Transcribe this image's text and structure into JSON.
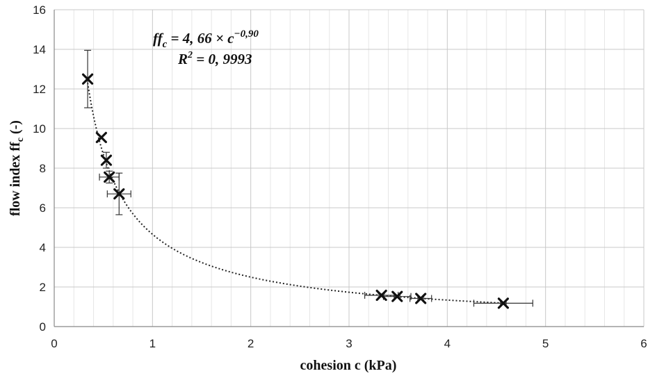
{
  "chart_data": {
    "type": "scatter",
    "xlabel": "cohesion c (kPa)",
    "ylabel": "flow index ff",
    "ylabel_subscript": "c",
    "ylabel_suffix": " (-)",
    "xlim": [
      0,
      6
    ],
    "ylim": [
      0,
      16
    ],
    "x_ticks": [
      0,
      1,
      2,
      3,
      4,
      5,
      6
    ],
    "y_ticks": [
      0,
      2,
      4,
      6,
      8,
      10,
      12,
      14,
      16
    ],
    "x_minor_step": 0.2,
    "grid": true,
    "points": [
      {
        "x": 0.34,
        "y": 12.5,
        "xerr": 0,
        "yerr": 1.45
      },
      {
        "x": 0.48,
        "y": 9.55,
        "xerr": 0,
        "yerr": 0
      },
      {
        "x": 0.53,
        "y": 8.4,
        "xerr": 0,
        "yerr": 0.4
      },
      {
        "x": 0.56,
        "y": 7.55,
        "xerr": 0.1,
        "yerr": 0.3
      },
      {
        "x": 0.66,
        "y": 6.7,
        "xerr": 0.12,
        "yerr": 1.05
      },
      {
        "x": 3.33,
        "y": 1.58,
        "xerr": 0.17,
        "yerr": 0.07
      },
      {
        "x": 3.49,
        "y": 1.52,
        "xerr": 0.14,
        "yerr": 0.05
      },
      {
        "x": 3.73,
        "y": 1.42,
        "xerr": 0.11,
        "yerr": 0.06
      },
      {
        "x": 4.57,
        "y": 1.18,
        "xerr": 0.3,
        "yerr": 0.05
      }
    ],
    "trendline": {
      "type": "power",
      "a": 4.66,
      "b": -0.9,
      "x_range": [
        0.34,
        4.57
      ]
    },
    "annotation": {
      "equation_lhs": "ff",
      "equation_lhs_sub": "c",
      "equation_rhs": " = 4, 66 × c",
      "equation_exp": "−0,90",
      "r2_label": "R",
      "r2_sup": "2",
      "r2_value": " = 0, 9993"
    }
  }
}
